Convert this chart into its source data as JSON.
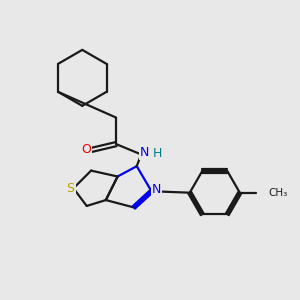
{
  "background_color": "#e8e8e8",
  "bond_color": "#1a1a1a",
  "N_color": "#0000ee",
  "O_color": "#ee0000",
  "S_color": "#b8a000",
  "H_color": "#008080",
  "figsize": [
    3.0,
    3.0
  ],
  "dpi": 100,
  "xlim": [
    0,
    10
  ],
  "ylim": [
    0,
    10
  ]
}
